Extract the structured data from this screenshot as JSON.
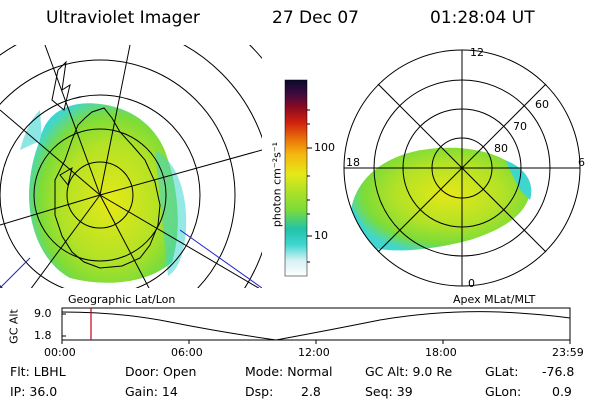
{
  "header": {
    "instrument": "Ultraviolet Imager",
    "date": "27 Dec 07",
    "time": "01:28:04 UT"
  },
  "geo_panel": {
    "label": "Geographic Lat/Lon"
  },
  "mlt_panel": {
    "label": "Apex MLat/MLT",
    "mlt_labels": [
      "12",
      "18",
      "6",
      "0"
    ],
    "lat_labels": [
      "60",
      "70",
      "80"
    ]
  },
  "colorbar": {
    "unit_label": "photon cm⁻²s⁻¹",
    "ticks": [
      "100",
      "10"
    ],
    "scale": "log",
    "colors": [
      "#ffffff",
      "#d6f0f4",
      "#3fd6d0",
      "#22c3a8",
      "#7ddc38",
      "#b3e226",
      "#e6e817",
      "#f5b70f",
      "#e8700a",
      "#d1230f",
      "#8c0a20",
      "#3b0a40",
      "#0a0a2a"
    ]
  },
  "altitude_plot": {
    "y_label": "GC Alt",
    "y_ticks": [
      "9.0",
      "1.8"
    ],
    "x_ticks": [
      "00:00",
      "06:00",
      "12:00",
      "18:00",
      "23:59"
    ],
    "marker_time": "01:28",
    "marker_color": "#c0001a"
  },
  "status": {
    "flt": "Flt: LBHL",
    "ip": "IP: 36.0",
    "door": "Door: Open",
    "gain": "Gain: 14",
    "mode": "Mode: Normal",
    "dsp_label": "Dsp:",
    "dsp_value": "2.8",
    "gc_alt": "GC Alt: 9.0 Re",
    "seq": "Seq: 39",
    "glat_label": "GLat:",
    "glat_value": "-76.8",
    "glon_label": "GLon:",
    "glon_value": "0.9"
  }
}
